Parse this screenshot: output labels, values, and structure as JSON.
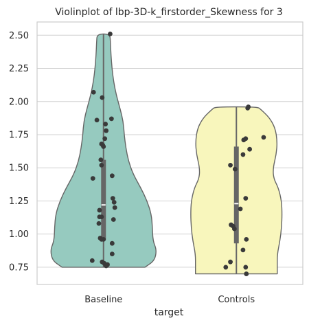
{
  "chart_data": {
    "type": "violin",
    "title": "Violinplot of lbp-3D-k_firstorder_Skewness for 3",
    "xlabel": "target",
    "ylabel": "",
    "ylim": [
      0.62,
      2.6
    ],
    "yticks": [
      "0.75",
      "1.00",
      "1.25",
      "1.50",
      "1.75",
      "2.00",
      "2.25",
      "2.50"
    ],
    "ytick_values": [
      0.75,
      1.0,
      1.25,
      1.5,
      1.75,
      2.0,
      2.25,
      2.5
    ],
    "grid": true,
    "categories": [
      "Baseline",
      "Controls"
    ],
    "colors": {
      "Baseline": "#96cabf",
      "Controls": "#f8f6bc",
      "edge": "#666666",
      "points": "#3a3a3a",
      "grid": "#d0d0d0"
    },
    "series": [
      {
        "category": "Baseline",
        "ymin": 0.75,
        "ymax": 2.51,
        "median": 1.22,
        "q1": 0.96,
        "q3": 1.56,
        "density": [
          [
            0.75,
            0.78
          ],
          [
            0.8,
            0.96
          ],
          [
            0.88,
            1.0
          ],
          [
            0.95,
            0.93
          ],
          [
            1.05,
            0.92
          ],
          [
            1.15,
            0.9
          ],
          [
            1.25,
            0.82
          ],
          [
            1.35,
            0.7
          ],
          [
            1.45,
            0.56
          ],
          [
            1.55,
            0.47
          ],
          [
            1.65,
            0.42
          ],
          [
            1.75,
            0.39
          ],
          [
            1.85,
            0.37
          ],
          [
            1.95,
            0.31
          ],
          [
            2.05,
            0.24
          ],
          [
            2.15,
            0.19
          ],
          [
            2.25,
            0.16
          ],
          [
            2.35,
            0.14
          ],
          [
            2.45,
            0.13
          ],
          [
            2.51,
            0.12
          ]
        ],
        "points": [
          [
            2.51,
            0.1
          ],
          [
            2.07,
            -0.15
          ],
          [
            2.03,
            -0.02
          ],
          [
            1.87,
            0.12
          ],
          [
            1.86,
            -0.1
          ],
          [
            1.83,
            0.03
          ],
          [
            1.78,
            0.04
          ],
          [
            1.72,
            0.02
          ],
          [
            1.68,
            -0.03
          ],
          [
            1.67,
            -0.01
          ],
          [
            1.66,
            0.0
          ],
          [
            1.56,
            -0.04
          ],
          [
            1.52,
            -0.03
          ],
          [
            1.44,
            0.13
          ],
          [
            1.42,
            -0.16
          ],
          [
            1.27,
            0.14
          ],
          [
            1.24,
            0.16
          ],
          [
            1.2,
            0.17
          ],
          [
            1.18,
            -0.06
          ],
          [
            1.13,
            -0.06
          ],
          [
            1.13,
            -0.03
          ],
          [
            1.11,
            0.15
          ],
          [
            1.08,
            -0.07
          ],
          [
            0.97,
            -0.05
          ],
          [
            0.96,
            -0.03
          ],
          [
            0.96,
            0.0
          ],
          [
            0.93,
            0.13
          ],
          [
            0.85,
            0.13
          ],
          [
            0.8,
            -0.17
          ],
          [
            0.79,
            -0.02
          ],
          [
            0.78,
            0.01
          ],
          [
            0.77,
            0.03
          ],
          [
            0.76,
            0.04
          ],
          [
            0.77,
            0.06
          ]
        ]
      },
      {
        "category": "Controls",
        "ymin": 0.7,
        "ymax": 1.96,
        "median": 1.23,
        "q1": 0.93,
        "q3": 1.66,
        "density": [
          [
            0.7,
            0.77
          ],
          [
            0.75,
            0.77
          ],
          [
            0.85,
            0.77
          ],
          [
            0.95,
            0.82
          ],
          [
            1.05,
            0.85
          ],
          [
            1.15,
            0.86
          ],
          [
            1.25,
            0.85
          ],
          [
            1.35,
            0.79
          ],
          [
            1.42,
            0.7
          ],
          [
            1.5,
            0.69
          ],
          [
            1.6,
            0.75
          ],
          [
            1.7,
            0.77
          ],
          [
            1.8,
            0.73
          ],
          [
            1.88,
            0.62
          ],
          [
            1.94,
            0.46
          ],
          [
            1.96,
            0.4
          ]
        ],
        "points": [
          [
            1.96,
            0.18
          ],
          [
            1.95,
            0.17
          ],
          [
            1.73,
            0.41
          ],
          [
            1.72,
            0.14
          ],
          [
            1.71,
            0.11
          ],
          [
            1.64,
            0.2
          ],
          [
            1.6,
            0.1
          ],
          [
            1.52,
            -0.09
          ],
          [
            1.49,
            -0.02
          ],
          [
            1.27,
            0.14
          ],
          [
            1.19,
            0.06
          ],
          [
            1.07,
            -0.08
          ],
          [
            1.06,
            -0.05
          ],
          [
            1.04,
            -0.03
          ],
          [
            0.96,
            0.15
          ],
          [
            0.88,
            0.1
          ],
          [
            0.79,
            -0.09
          ],
          [
            0.75,
            -0.16
          ],
          [
            0.75,
            0.14
          ],
          [
            0.7,
            0.15
          ]
        ]
      }
    ]
  }
}
